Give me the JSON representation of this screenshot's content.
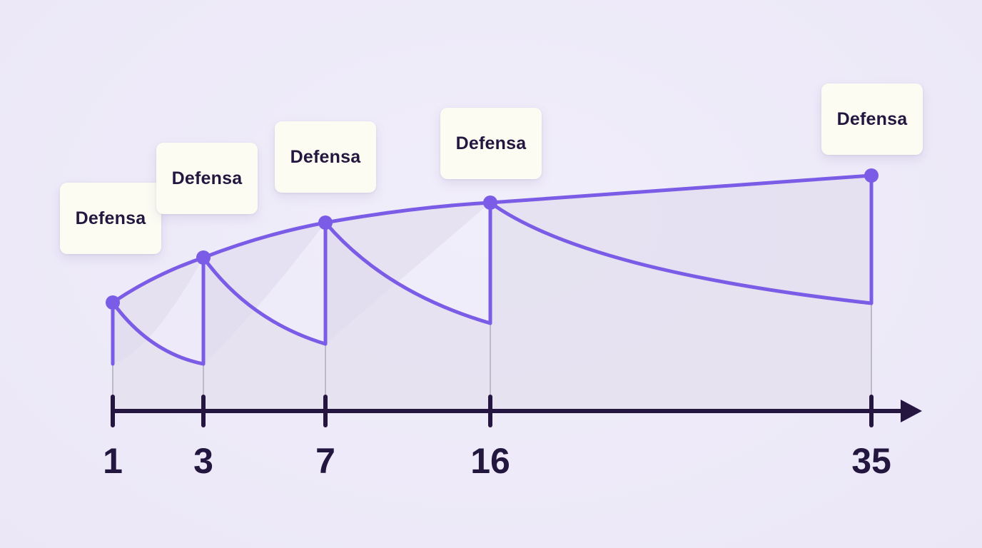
{
  "callouts": [
    {
      "label": "Defensa"
    },
    {
      "label": "Defensa"
    },
    {
      "label": "Defensa"
    },
    {
      "label": "Defensa"
    },
    {
      "label": "Defensa"
    }
  ],
  "ticks": [
    "1",
    "3",
    "7",
    "16",
    "35"
  ],
  "colors": {
    "curve": "#7b5ce6",
    "axis": "#241640",
    "fill": "#e5e1f0",
    "background": "#efebf9"
  }
}
